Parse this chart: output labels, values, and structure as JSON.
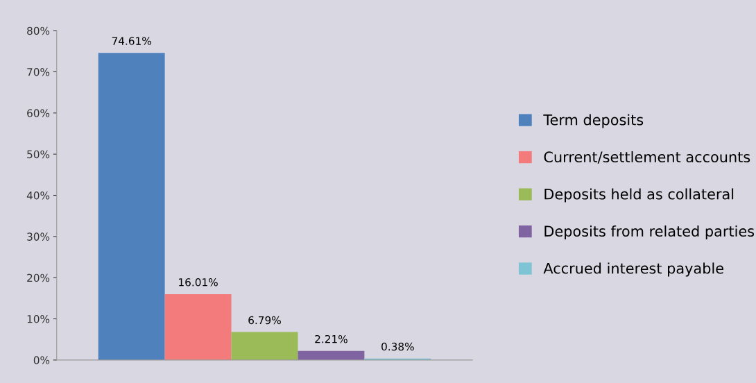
{
  "chart_data": {
    "type": "bar",
    "categories": [
      null
    ],
    "series": [
      {
        "name": "Term deposits",
        "color": "#4f81bd",
        "values": [
          74.61
        ],
        "value_labels": [
          "74.61%"
        ]
      },
      {
        "name": "Current/settlement accounts",
        "color": "#f47b7b",
        "values": [
          16.01
        ],
        "value_labels": [
          "16.01%"
        ]
      },
      {
        "name": "Deposits held as collateral",
        "color": "#9bbb59",
        "values": [
          6.79
        ],
        "value_labels": [
          "6.79%"
        ]
      },
      {
        "name": "Deposits from related parties",
        "color": "#8064a2",
        "values": [
          2.21
        ],
        "value_labels": [
          "2.21%"
        ]
      },
      {
        "name": "Accrued interest payable",
        "color": "#7fc4d4",
        "values": [
          0.38
        ],
        "value_labels": [
          "0.38%"
        ]
      }
    ],
    "ylim": [
      0,
      80
    ],
    "yticks": [
      {
        "value": 0,
        "label": "0%"
      },
      {
        "value": 10,
        "label": "10%"
      },
      {
        "value": 20,
        "label": "20%"
      },
      {
        "value": 30,
        "label": "30%"
      },
      {
        "value": 40,
        "label": "40%"
      },
      {
        "value": 50,
        "label": "50%"
      },
      {
        "value": 60,
        "label": "60%"
      },
      {
        "value": 70,
        "label": "70%"
      },
      {
        "value": 80,
        "label": "80%"
      }
    ],
    "grid": false,
    "legend": "right"
  }
}
